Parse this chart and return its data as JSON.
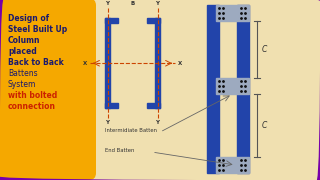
{
  "bg_color": "#f0e0b0",
  "border_color": "#7700aa",
  "title_box_color": "#f5a800",
  "title_bold_lines": [
    "Design of",
    "Steel Built Up",
    "Column",
    "placed",
    "Back to Back"
  ],
  "title_normal_lines": [
    "Battens",
    "System"
  ],
  "title_bolted": "with bolted",
  "title_connection": "connection",
  "title_bold_color": "#1a1a6e",
  "title_normal_color": "#1a1a6e",
  "title_red_color": "#cc2200",
  "channel_color": "#2244aa",
  "batten_color": "#9daabf",
  "axis_color": "#cc4400",
  "dim_color": "#555555",
  "dot_color": "#111111",
  "text_color": "#333333",
  "label_font": 4.5,
  "title_font": 5.5
}
